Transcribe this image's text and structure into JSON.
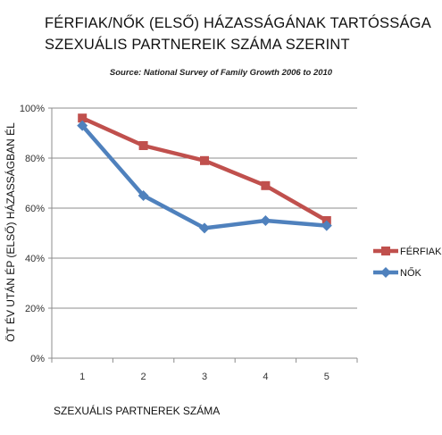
{
  "chart_data": {
    "type": "line",
    "title_line1": "FÉRFIAK/NŐK (ELSŐ) HÁZASSÁGÁNAK TARTÓSSÁGA",
    "title_line2": "SZEXUÁLIS PARTNEREIK SZÁMA SZERINT",
    "subtitle": "Source: National Survey of Family Growth 2006 to 2010",
    "xlabel": "SZEXUÁLIS PARTNEREK SZÁMA",
    "ylabel": "ÖT ÉV UTÁN ÉP (ELSŐ) HÁZASSÁGBAN ÉL",
    "x": [
      1,
      2,
      3,
      4,
      5
    ],
    "x_ticks": [
      "1",
      "2",
      "3",
      "4",
      "5"
    ],
    "y_ticks": [
      "0%",
      "20%",
      "40%",
      "60%",
      "80%",
      "100%"
    ],
    "ylim": [
      0,
      100
    ],
    "grid": true,
    "legend_position": "right",
    "series": [
      {
        "name": "FÉRFIAK",
        "values": [
          96,
          85,
          79,
          69,
          55
        ],
        "color": "#c0504d",
        "marker": "square"
      },
      {
        "name": "NŐK",
        "values": [
          93,
          65,
          52,
          55,
          53
        ],
        "color": "#4f81bd",
        "marker": "diamond"
      }
    ]
  }
}
